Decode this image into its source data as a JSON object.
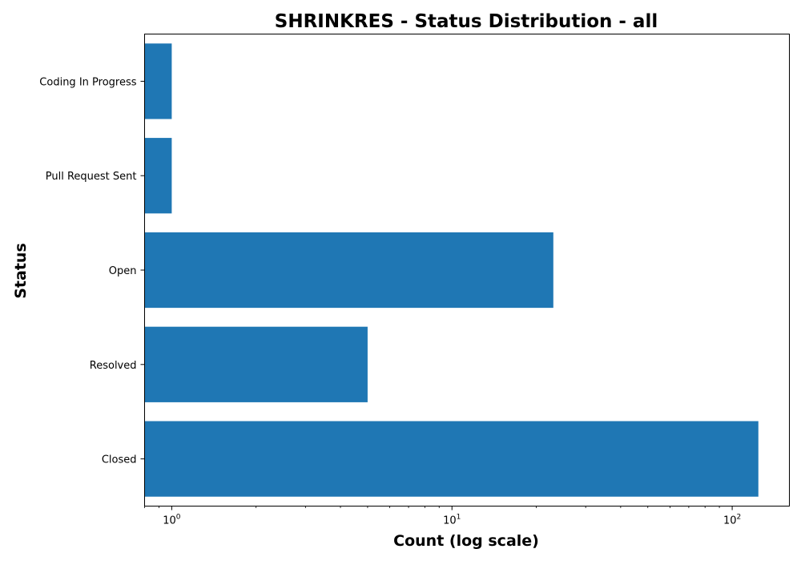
{
  "chart_data": {
    "type": "bar",
    "orientation": "horizontal",
    "title": "SHRINKRES - Status Distribution - all",
    "xlabel": "Count (log scale)",
    "ylabel": "Status",
    "x_scale": "log",
    "xlim": [
      0.8,
      160
    ],
    "x_major_ticks": [
      {
        "value": 1,
        "base": "10",
        "exp": "0"
      },
      {
        "value": 10,
        "base": "10",
        "exp": "1"
      },
      {
        "value": 100,
        "base": "10",
        "exp": "2"
      }
    ],
    "categories": [
      "Coding In Progress",
      "Pull Request Sent",
      "Open",
      "Resolved",
      "Closed"
    ],
    "values": [
      1,
      1,
      23,
      5,
      124
    ],
    "bar_color": "#1f77b4",
    "grid": false,
    "legend": "none"
  }
}
